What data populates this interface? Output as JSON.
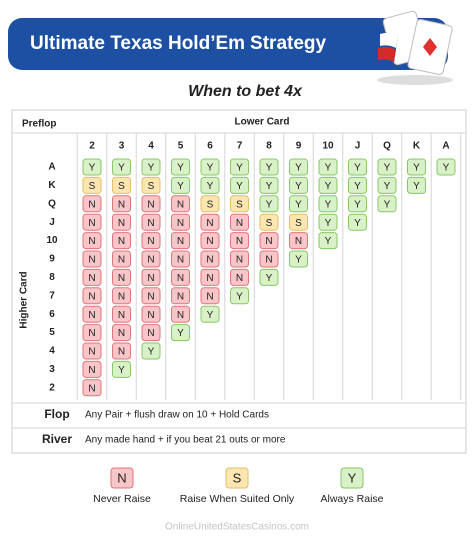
{
  "header": {
    "title": "Ultimate Texas Hold’Em",
    "title_emphasis": "Strategy",
    "subtitle": "When to bet 4x"
  },
  "table": {
    "corner": "Preflop",
    "column_axis": "Lower Card",
    "row_axis": "Higher Card",
    "columns": [
      "2",
      "3",
      "4",
      "5",
      "6",
      "7",
      "8",
      "9",
      "10",
      "J",
      "Q",
      "K",
      "A"
    ],
    "rows": [
      {
        "label": "A",
        "cells": [
          "Y",
          "Y",
          "Y",
          "Y",
          "Y",
          "Y",
          "Y",
          "Y",
          "Y",
          "Y",
          "Y",
          "Y",
          "Y"
        ]
      },
      {
        "label": "K",
        "cells": [
          "S",
          "S",
          "S",
          "Y",
          "Y",
          "Y",
          "Y",
          "Y",
          "Y",
          "Y",
          "Y",
          "Y"
        ]
      },
      {
        "label": "Q",
        "cells": [
          "N",
          "N",
          "N",
          "N",
          "S",
          "S",
          "Y",
          "Y",
          "Y",
          "Y",
          "Y"
        ]
      },
      {
        "label": "J",
        "cells": [
          "N",
          "N",
          "N",
          "N",
          "N",
          "N",
          "S",
          "S",
          "Y",
          "Y"
        ]
      },
      {
        "label": "10",
        "cells": [
          "N",
          "N",
          "N",
          "N",
          "N",
          "N",
          "N",
          "N",
          "Y"
        ]
      },
      {
        "label": "9",
        "cells": [
          "N",
          "N",
          "N",
          "N",
          "N",
          "N",
          "N",
          "Y"
        ]
      },
      {
        "label": "8",
        "cells": [
          "N",
          "N",
          "N",
          "N",
          "N",
          "N",
          "Y"
        ]
      },
      {
        "label": "7",
        "cells": [
          "N",
          "N",
          "N",
          "N",
          "N",
          "Y"
        ]
      },
      {
        "label": "6",
        "cells": [
          "N",
          "N",
          "N",
          "N",
          "Y"
        ]
      },
      {
        "label": "5",
        "cells": [
          "N",
          "N",
          "N",
          "Y"
        ]
      },
      {
        "label": "4",
        "cells": [
          "N",
          "N",
          "Y"
        ]
      },
      {
        "label": "3",
        "cells": [
          "N",
          "Y"
        ]
      },
      {
        "label": "2",
        "cells": [
          "N"
        ]
      }
    ]
  },
  "notes": [
    {
      "label": "Flop",
      "text": "Any Pair + flush draw on 10 + Hold Cards"
    },
    {
      "label": "River",
      "text": "Any made hand + if you beat 21 outs or more"
    }
  ],
  "legend": [
    {
      "symbol": "N",
      "label": "Never Raise",
      "fill": "#f8c6c8",
      "stroke": "#e2747b"
    },
    {
      "symbol": "S",
      "label": "Raise When Suited Only",
      "fill": "#fbe6b2",
      "stroke": "#e6bf63"
    },
    {
      "symbol": "Y",
      "label": "Always Raise",
      "fill": "#d9f1c6",
      "stroke": "#86c866"
    }
  ],
  "footer": "OnlineUnitedStatesCasinos.com"
}
